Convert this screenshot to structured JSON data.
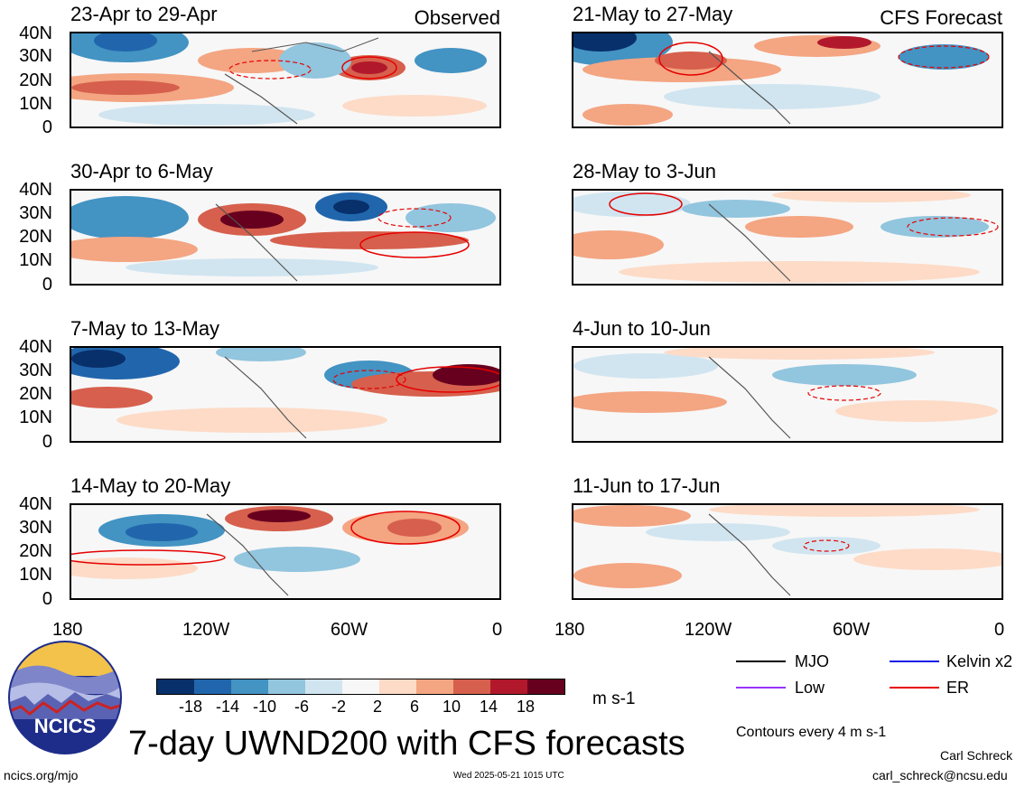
{
  "header_tags": {
    "observed": "Observed",
    "forecast": "CFS Forecast"
  },
  "panels_left": [
    {
      "title": "23-Apr to 29-Apr"
    },
    {
      "title": "30-Apr to 6-May"
    },
    {
      "title": "7-May to 13-May"
    },
    {
      "title": "14-May to 20-May"
    }
  ],
  "panels_right": [
    {
      "title": "21-May to 27-May"
    },
    {
      "title": "28-May to 3-Jun"
    },
    {
      "title": "4-Jun to 10-Jun"
    },
    {
      "title": "11-Jun to 17-Jun"
    }
  ],
  "lat_labels": [
    "40N",
    "30N",
    "20N",
    "10N",
    "0"
  ],
  "lon_labels": [
    "180",
    "120W",
    "60W",
    "0"
  ],
  "legend": {
    "mjo": "MJO",
    "kelvin": "Kelvin x2",
    "low": "Low",
    "er": "ER",
    "colors": {
      "mjo": "#000000",
      "kelvin": "#1a1ae6",
      "low": "#9933ff",
      "er": "#e60000"
    }
  },
  "colorbar": {
    "ticks": [
      "-18",
      "-14",
      "-10",
      "-6",
      "-2",
      "2",
      "6",
      "10",
      "14",
      "18"
    ],
    "colors": [
      "#08306b",
      "#2166ac",
      "#4393c3",
      "#92c5de",
      "#d1e5f0",
      "#f7f7f7",
      "#fddbc7",
      "#f4a582",
      "#d6604d",
      "#b2182b",
      "#67001f"
    ],
    "units": "m s-1"
  },
  "logo": {
    "text": "NCICS"
  },
  "main_title": "7-day UWND200 with CFS forecasts",
  "contours_note": "Contours every 4 m s-1",
  "footer": {
    "url": "ncics.org/mjo",
    "timestamp": "Wed 2025-05-21 1015 UTC",
    "author": "Carl Schreck",
    "email": "carl_schreck@ncsu.edu"
  }
}
